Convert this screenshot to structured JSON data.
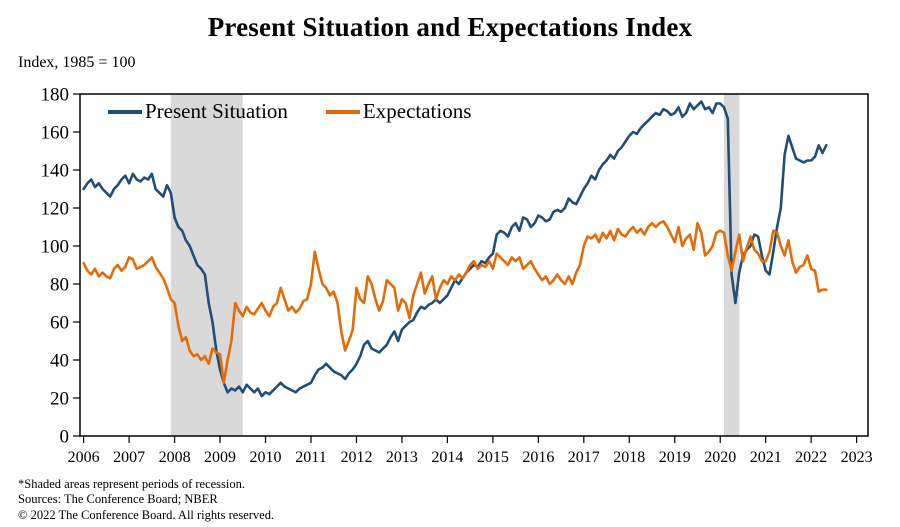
{
  "footnotes": [
    "*Shaded areas represent periods of recession.",
    "Sources: The Conference Board; NBER",
    "© 2022 The Conference Board. All rights reserved."
  ],
  "chart_data": {
    "type": "line",
    "title": "Present Situation and Expectations Index",
    "ylabel": "Index, 1985 = 100",
    "xlabel": "",
    "ylim": [
      0,
      180
    ],
    "ytick_step": 20,
    "xlim": [
      2005.92,
      2023.25
    ],
    "xticks": [
      2006,
      2007,
      2008,
      2009,
      2010,
      2011,
      2012,
      2013,
      2014,
      2015,
      2016,
      2017,
      2018,
      2019,
      2020,
      2021,
      2022,
      2023
    ],
    "x_start": 2006.0,
    "x_step": "monthly",
    "grid": "off",
    "legend_position": "top-left-inside",
    "recession_color": "#d9d9d9",
    "recessions": [
      {
        "start": 2007.92,
        "end": 2009.5
      },
      {
        "start": 2020.08,
        "end": 2020.42
      }
    ],
    "series": [
      {
        "id": "present-situation",
        "name": "Present Situation",
        "color": "#1f4e79",
        "values": [
          130,
          133,
          135,
          131,
          133,
          130,
          128,
          126,
          130,
          132,
          135,
          137,
          133,
          138,
          135,
          134,
          136,
          135,
          138,
          130,
          128,
          126,
          132,
          128,
          115,
          110,
          108,
          103,
          100,
          95,
          90,
          88,
          85,
          70,
          60,
          45,
          35,
          28,
          23,
          25,
          24,
          26,
          23,
          27,
          25,
          23,
          25,
          21,
          23,
          22,
          24,
          26,
          28,
          26,
          25,
          24,
          23,
          25,
          26,
          27,
          28,
          32,
          35,
          36,
          38,
          36,
          34,
          33,
          32,
          30,
          33,
          35,
          38,
          42,
          48,
          50,
          46,
          45,
          44,
          46,
          48,
          52,
          55,
          50,
          56,
          58,
          60,
          61,
          65,
          68,
          67,
          69,
          70,
          72,
          70,
          72,
          74,
          78,
          82,
          80,
          83,
          86,
          88,
          90,
          89,
          92,
          91,
          94,
          96,
          106,
          108,
          107,
          105,
          110,
          112,
          108,
          115,
          114,
          110,
          112,
          116,
          115,
          113,
          114,
          118,
          119,
          118,
          120,
          125,
          123,
          122,
          126,
          130,
          133,
          137,
          135,
          140,
          143,
          145,
          148,
          146,
          150,
          152,
          155,
          158,
          160,
          159,
          162,
          164,
          166,
          168,
          170,
          169,
          172,
          171,
          169,
          170,
          173,
          168,
          170,
          175,
          172,
          174,
          176,
          172,
          173,
          170,
          175,
          175,
          173,
          167,
          85,
          70,
          86,
          95,
          98,
          100,
          106,
          105,
          95,
          87,
          85,
          97,
          110,
          120,
          148,
          158,
          152,
          146,
          145,
          144,
          145,
          145,
          147,
          153,
          149,
          153
        ]
      },
      {
        "id": "expectations",
        "name": "Expectations",
        "color": "#e36c09",
        "values": [
          91,
          87,
          85,
          88,
          84,
          86,
          84,
          83,
          88,
          90,
          87,
          89,
          94,
          93,
          88,
          89,
          90,
          92,
          94,
          89,
          86,
          83,
          78,
          72,
          70,
          58,
          50,
          52,
          45,
          42,
          43,
          40,
          42,
          38,
          46,
          44,
          43,
          28,
          40,
          50,
          70,
          66,
          63,
          68,
          65,
          64,
          67,
          70,
          66,
          63,
          68,
          70,
          78,
          72,
          66,
          68,
          65,
          67,
          71,
          72,
          80,
          97,
          88,
          80,
          78,
          74,
          76,
          70,
          55,
          45,
          50,
          56,
          78,
          72,
          70,
          84,
          80,
          72,
          66,
          71,
          82,
          80,
          78,
          66,
          72,
          70,
          62,
          74,
          80,
          86,
          75,
          80,
          84,
          72,
          78,
          82,
          80,
          84,
          82,
          85,
          83,
          86,
          90,
          92,
          88,
          90,
          89,
          92,
          88,
          96,
          94,
          92,
          90,
          94,
          92,
          94,
          88,
          90,
          92,
          88,
          85,
          82,
          84,
          80,
          82,
          85,
          82,
          80,
          84,
          80,
          86,
          90,
          100,
          105,
          104,
          106,
          102,
          107,
          104,
          108,
          103,
          109,
          106,
          105,
          108,
          110,
          107,
          109,
          106,
          110,
          112,
          110,
          112,
          113,
          110,
          106,
          102,
          110,
          100,
          104,
          106,
          98,
          112,
          107,
          95,
          97,
          100,
          107,
          108,
          107,
          95,
          87,
          97,
          106,
          92,
          99,
          105,
          98,
          96,
          92,
          92,
          97,
          108,
          107,
          100,
          95,
          103,
          92,
          86,
          89,
          90,
          95,
          88,
          87,
          76,
          77,
          77
        ]
      }
    ]
  }
}
